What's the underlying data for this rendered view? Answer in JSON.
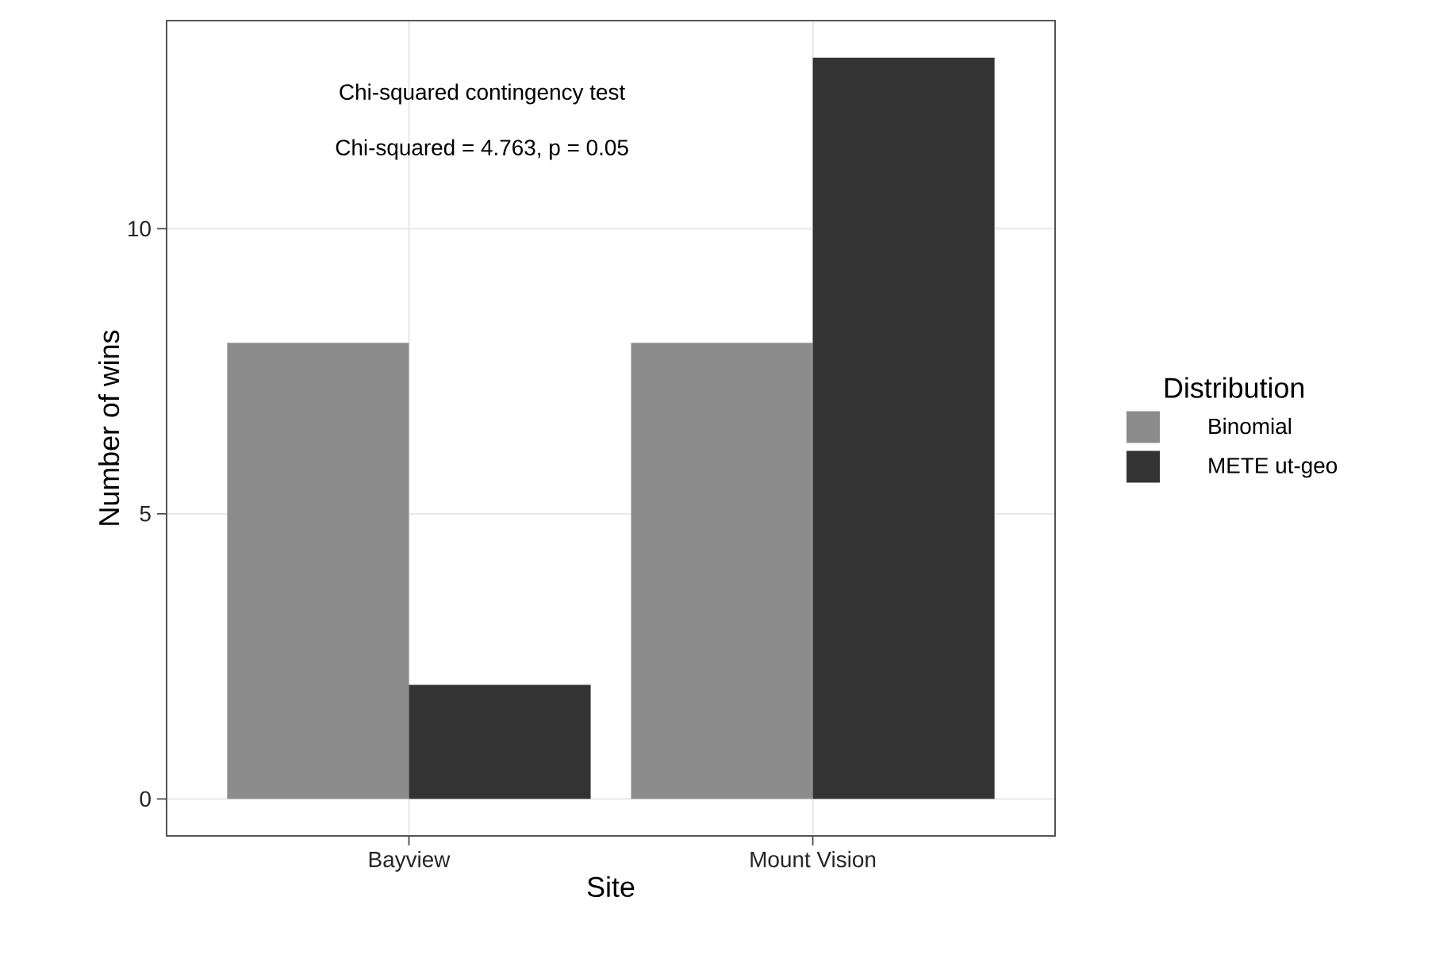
{
  "chart_data": {
    "type": "bar",
    "xlabel": "Site",
    "ylabel": "Number of wins",
    "legend_title": "Distribution",
    "categories": [
      "Bayview",
      "Mount Vision"
    ],
    "series": [
      {
        "name": "Binomial",
        "color": "#8c8c8c",
        "values": [
          8,
          8
        ]
      },
      {
        "name": "METE ut-geo",
        "color": "#333333",
        "values": [
          2,
          13
        ]
      }
    ],
    "ylim": [
      -0.65,
      13.65
    ],
    "yticks": [
      0,
      5,
      10
    ],
    "grid": true,
    "legend": "right",
    "annotations": [
      "Chi-squared contingency test",
      "Chi-squared = 4.763, p = 0.05"
    ]
  }
}
